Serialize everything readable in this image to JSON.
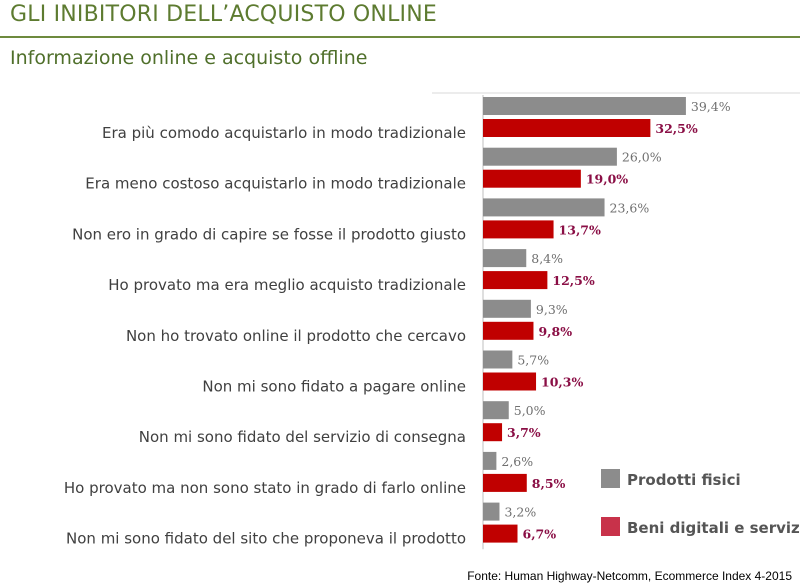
{
  "title": "GLI INIBITORI DELL’ACQUISTO ONLINE",
  "subtitle": "Informazione online  e acquisto offline",
  "source": "Fonte: Human Highway-Netcomm, Ecommerce Index 4-2015",
  "colors": {
    "title": "#5d7b30",
    "series_fisici": "#8c8c8c",
    "series_digitali": "#c00000",
    "label_digitali": "#8a0e45",
    "label_fisici": "#707070",
    "legend_digitali": "#c8324a"
  },
  "chart_data": {
    "type": "bar",
    "orientation": "horizontal",
    "categories": [
      "Era più comodo acquistarlo in modo tradizionale",
      "Era meno costoso acquistarlo in modo tradizionale",
      "Non ero in grado di capire se fosse il prodotto giusto",
      "Ho provato ma era meglio acquisto tradizionale",
      "Non ho trovato online il prodotto che cercavo",
      "Non mi sono fidato a pagare online",
      "Non mi sono fidato del servizio di consegna",
      "Ho provato ma non sono stato in grado di farlo online",
      "Non mi sono fidato del sito che proponeva il prodotto"
    ],
    "series": [
      {
        "name": "Prodotti fisici",
        "values": [
          39.4,
          26.0,
          23.6,
          8.4,
          9.3,
          5.7,
          5.0,
          2.6,
          3.2
        ],
        "labels": [
          "39,4%",
          "26,0%",
          "23,6%",
          "8,4%",
          "9,3%",
          "5,7%",
          "5,0%",
          "2,6%",
          "3,2%"
        ]
      },
      {
        "name": "Beni digitali e servizi",
        "values": [
          32.5,
          19.0,
          13.7,
          12.5,
          9.8,
          10.3,
          3.7,
          8.5,
          6.7
        ],
        "labels": [
          "32,5%",
          "19,0%",
          "13,7%",
          "12,5%",
          "9,8%",
          "10,3%",
          "3,7%",
          "8,5%",
          "6,7%"
        ]
      }
    ],
    "xlim": [
      0,
      40
    ],
    "grid": false,
    "legend_position": "right"
  }
}
